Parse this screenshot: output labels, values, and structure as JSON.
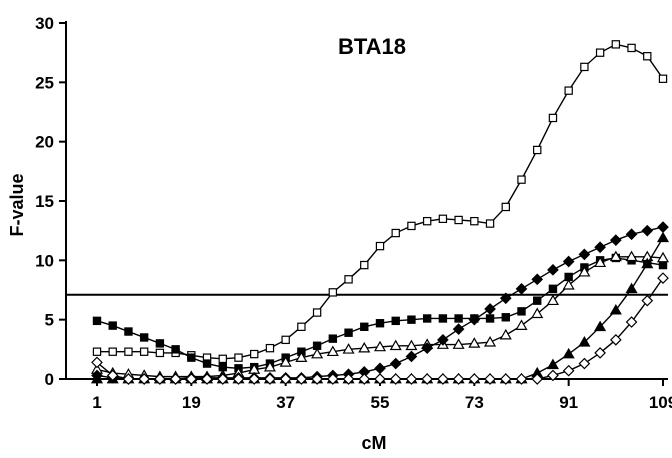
{
  "chart_data": {
    "type": "line",
    "title": "BTA18",
    "xlabel": "cM",
    "ylabel": "F-value",
    "xlim": [
      1,
      110
    ],
    "ylim": [
      0,
      30
    ],
    "x_ticks": [
      1,
      19,
      37,
      55,
      73,
      91,
      109
    ],
    "y_ticks": [
      0,
      5,
      10,
      15,
      20,
      25,
      30
    ],
    "threshold": 7.1,
    "grid": false,
    "legend": "none",
    "colors": {
      "line": "#000000",
      "background": "#ffffff"
    },
    "series": [
      {
        "marker": "open-square",
        "x": [
          1,
          4,
          7,
          10,
          13,
          16,
          19,
          22,
          25,
          28,
          31,
          34,
          37,
          40,
          43,
          46,
          49,
          52,
          55,
          58,
          61,
          64,
          67,
          70,
          73,
          76,
          79,
          82,
          85,
          88,
          91,
          94,
          97,
          100,
          103,
          106,
          109
        ],
        "y": [
          2.3,
          2.3,
          2.3,
          2.3,
          2.2,
          2.2,
          2.0,
          1.8,
          1.7,
          1.8,
          2.1,
          2.6,
          3.3,
          4.4,
          5.6,
          7.3,
          8.4,
          9.6,
          11.2,
          12.3,
          12.9,
          13.3,
          13.5,
          13.4,
          13.3,
          13.1,
          14.5,
          16.8,
          19.3,
          22.0,
          24.3,
          26.3,
          27.5,
          28.2,
          27.9,
          27.2,
          25.3
        ]
      },
      {
        "marker": "filled-square",
        "x": [
          1,
          4,
          7,
          10,
          13,
          16,
          19,
          22,
          25,
          28,
          31,
          34,
          37,
          40,
          43,
          46,
          49,
          52,
          55,
          58,
          61,
          64,
          67,
          70,
          73,
          76,
          79,
          82,
          85,
          88,
          91,
          94,
          97,
          100,
          103,
          106,
          109
        ],
        "y": [
          4.9,
          4.5,
          4.0,
          3.5,
          3.0,
          2.5,
          1.8,
          1.3,
          1.0,
          0.9,
          1.0,
          1.3,
          1.8,
          2.3,
          2.8,
          3.4,
          3.9,
          4.4,
          4.7,
          4.9,
          5.0,
          5.1,
          5.1,
          5.1,
          5.1,
          5.1,
          5.2,
          5.7,
          6.6,
          7.6,
          8.6,
          9.4,
          10.0,
          10.2,
          10.0,
          9.8,
          9.6
        ]
      },
      {
        "marker": "open-triangle",
        "x": [
          1,
          4,
          7,
          10,
          13,
          16,
          19,
          22,
          25,
          28,
          31,
          34,
          37,
          40,
          43,
          46,
          49,
          52,
          55,
          58,
          61,
          64,
          67,
          70,
          73,
          76,
          79,
          82,
          85,
          88,
          91,
          94,
          97,
          100,
          103,
          106,
          109
        ],
        "y": [
          0.8,
          0.5,
          0.4,
          0.3,
          0.2,
          0.2,
          0.2,
          0.2,
          0.3,
          0.5,
          0.8,
          1.0,
          1.4,
          1.8,
          2.1,
          2.3,
          2.5,
          2.6,
          2.7,
          2.8,
          2.8,
          2.9,
          2.9,
          2.9,
          3.0,
          3.1,
          3.7,
          4.5,
          5.5,
          6.6,
          7.9,
          9.0,
          9.8,
          10.3,
          10.3,
          10.3,
          10.2
        ]
      },
      {
        "marker": "filled-diamond",
        "x": [
          1,
          4,
          7,
          10,
          13,
          16,
          19,
          22,
          25,
          28,
          31,
          34,
          37,
          40,
          43,
          46,
          49,
          52,
          55,
          58,
          61,
          64,
          67,
          70,
          73,
          76,
          79,
          82,
          85,
          88,
          91,
          94,
          97,
          100,
          103,
          106,
          109
        ],
        "y": [
          0.3,
          0.1,
          0.0,
          0.0,
          0.0,
          0.0,
          0.1,
          0.1,
          0.1,
          0.1,
          0.1,
          0.1,
          0.1,
          0.1,
          0.2,
          0.3,
          0.4,
          0.6,
          0.9,
          1.3,
          1.9,
          2.6,
          3.3,
          4.2,
          5.0,
          5.9,
          6.8,
          7.6,
          8.4,
          9.2,
          9.9,
          10.5,
          11.1,
          11.7,
          12.2,
          12.5,
          12.8
        ]
      },
      {
        "marker": "filled-triangle",
        "x": [
          1,
          4,
          7,
          10,
          13,
          16,
          19,
          22,
          25,
          28,
          31,
          34,
          37,
          40,
          43,
          46,
          49,
          52,
          55,
          58,
          61,
          64,
          67,
          70,
          73,
          76,
          79,
          82,
          85,
          88,
          91,
          94,
          97,
          100,
          103,
          106,
          109
        ],
        "y": [
          0.0,
          0.0,
          0.0,
          0.0,
          0.0,
          0.0,
          0.0,
          0.0,
          0.0,
          0.0,
          0.0,
          0.0,
          0.0,
          0.0,
          0.0,
          0.0,
          0.0,
          0.0,
          0.0,
          0.0,
          0.0,
          0.0,
          0.0,
          0.0,
          0.0,
          0.0,
          0.0,
          0.0,
          0.5,
          1.2,
          2.1,
          3.1,
          4.4,
          5.8,
          7.6,
          9.7,
          11.9
        ]
      },
      {
        "marker": "open-diamond",
        "x": [
          1,
          4,
          7,
          10,
          13,
          16,
          19,
          22,
          25,
          28,
          31,
          34,
          37,
          40,
          43,
          46,
          49,
          52,
          55,
          58,
          61,
          64,
          67,
          70,
          73,
          76,
          79,
          82,
          85,
          88,
          91,
          94,
          97,
          100,
          103,
          106,
          109
        ],
        "y": [
          1.4,
          0.3,
          0.0,
          0.0,
          0.0,
          0.0,
          0.0,
          0.0,
          0.0,
          0.0,
          0.0,
          0.0,
          0.0,
          0.0,
          0.0,
          0.0,
          0.0,
          0.0,
          0.0,
          0.0,
          0.0,
          0.0,
          0.0,
          0.0,
          0.0,
          0.0,
          0.0,
          0.0,
          0.0,
          0.3,
          0.7,
          1.3,
          2.2,
          3.3,
          4.8,
          6.6,
          8.5
        ]
      }
    ]
  }
}
